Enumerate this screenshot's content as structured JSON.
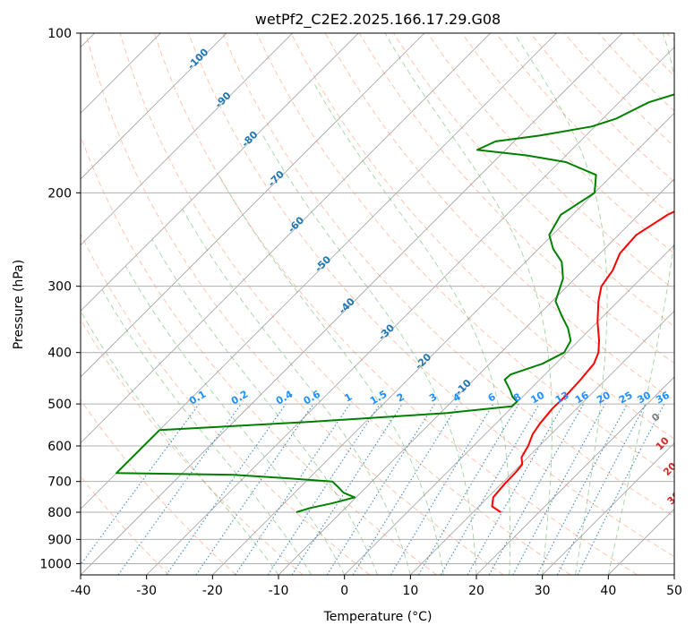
{
  "chart_data": {
    "type": "line",
    "subtype": "skew-t log-p diagram",
    "title": "wetPf2_C2E2.2025.166.17.29.G08",
    "xlabel": "Temperature (°C)",
    "ylabel": "Pressure (hPa)",
    "xlim": [
      -40,
      50
    ],
    "ylim": [
      1050,
      100
    ],
    "x_ticks": [
      -40,
      -30,
      -20,
      -10,
      0,
      10,
      20,
      30,
      40,
      50
    ],
    "y_ticks": [
      100,
      200,
      300,
      400,
      500,
      600,
      700,
      800,
      900,
      1000
    ],
    "grid": true,
    "colors": {
      "temperature": "#ff0000",
      "dewpoint": "#008000",
      "isotherm": "#808080",
      "dry_adiabat": "#ff7f50",
      "moist_adiabat": "#2ca02c",
      "mixing_ratio": "#1f77b4",
      "isotherm_label": "#1f77b4",
      "upper_dry_label": "#d62728"
    },
    "series": [
      {
        "name": "Temperature",
        "color": "#ff0000",
        "points": [
          {
            "p": 800,
            "t": 14.2
          },
          {
            "p": 780,
            "t": 12.0
          },
          {
            "p": 750,
            "t": 10.8
          },
          {
            "p": 710,
            "t": 10.5
          },
          {
            "p": 670,
            "t": 10.4
          },
          {
            "p": 650,
            "t": 10.2
          },
          {
            "p": 630,
            "t": 9.0
          },
          {
            "p": 600,
            "t": 8.3
          },
          {
            "p": 570,
            "t": 7.2
          },
          {
            "p": 545,
            "t": 6.7
          },
          {
            "p": 510,
            "t": 6.3
          },
          {
            "p": 480,
            "t": 6.4
          },
          {
            "p": 450,
            "t": 6.2
          },
          {
            "p": 420,
            "t": 5.8
          },
          {
            "p": 400,
            "t": 4.8
          },
          {
            "p": 380,
            "t": 3.1
          },
          {
            "p": 350,
            "t": 0.0
          },
          {
            "p": 320,
            "t": -3.0
          },
          {
            "p": 300,
            "t": -4.8
          },
          {
            "p": 280,
            "t": -5.5
          },
          {
            "p": 260,
            "t": -7.0
          },
          {
            "p": 240,
            "t": -7.3
          },
          {
            "p": 220,
            "t": -5.6
          },
          {
            "p": 200,
            "t": -2.0
          },
          {
            "p": 185,
            "t": 2.0
          },
          {
            "p": 170,
            "t": 6.5
          },
          {
            "p": 155,
            "t": 10.5
          },
          {
            "p": 140,
            "t": 13.5
          },
          {
            "p": 128,
            "t": 16.3
          },
          {
            "p": 118,
            "t": 18.5
          },
          {
            "p": 112,
            "t": 21.8
          },
          {
            "p": 106,
            "t": 25.0
          },
          {
            "p": 100,
            "t": 26.8
          }
        ]
      },
      {
        "name": "Dewpoint",
        "color": "#008000",
        "points": [
          {
            "p": 800,
            "t": -16.8
          },
          {
            "p": 785,
            "t": -15.3
          },
          {
            "p": 770,
            "t": -12.8
          },
          {
            "p": 750,
            "t": -10.2
          },
          {
            "p": 735,
            "t": -12.6
          },
          {
            "p": 720,
            "t": -14.0
          },
          {
            "p": 700,
            "t": -16.0
          },
          {
            "p": 690,
            "t": -23.5
          },
          {
            "p": 680,
            "t": -32.0
          },
          {
            "p": 675,
            "t": -50.0
          },
          {
            "p": 560,
            "t": -50.0
          },
          {
            "p": 540,
            "t": -28.0
          },
          {
            "p": 520,
            "t": -9.0
          },
          {
            "p": 505,
            "t": -0.2
          },
          {
            "p": 495,
            "t": -0.1
          },
          {
            "p": 485,
            "t": -1.5
          },
          {
            "p": 470,
            "t": -3.0
          },
          {
            "p": 450,
            "t": -5.3
          },
          {
            "p": 440,
            "t": -5.2
          },
          {
            "p": 420,
            "t": -2.0
          },
          {
            "p": 400,
            "t": -0.4
          },
          {
            "p": 380,
            "t": -1.2
          },
          {
            "p": 360,
            "t": -3.5
          },
          {
            "p": 340,
            "t": -6.5
          },
          {
            "p": 320,
            "t": -9.5
          },
          {
            "p": 290,
            "t": -11.8
          },
          {
            "p": 270,
            "t": -14.5
          },
          {
            "p": 255,
            "t": -17.8
          },
          {
            "p": 240,
            "t": -20.5
          },
          {
            "p": 220,
            "t": -21.8
          },
          {
            "p": 200,
            "t": -20.0
          },
          {
            "p": 185,
            "t": -22.5
          },
          {
            "p": 175,
            "t": -29.0
          },
          {
            "p": 170,
            "t": -36.0
          },
          {
            "p": 166,
            "t": -44.3
          },
          {
            "p": 160,
            "t": -42.8
          },
          {
            "p": 156,
            "t": -37.0
          },
          {
            "p": 150,
            "t": -30.5
          },
          {
            "p": 145,
            "t": -28.0
          },
          {
            "p": 135,
            "t": -25.5
          },
          {
            "p": 125,
            "t": -19.5
          },
          {
            "p": 115,
            "t": -16.0
          },
          {
            "p": 108,
            "t": -13.5
          },
          {
            "p": 100,
            "t": -10.0
          }
        ]
      }
    ],
    "mixing_ratio_lines_g_per_kg": [
      0.1,
      0.2,
      0.4,
      0.6,
      1,
      1.5,
      2,
      3,
      4,
      6,
      8,
      10,
      13,
      16,
      20,
      25,
      30,
      36
    ],
    "mixing_ratio_labels": [
      "0.1",
      "0.2",
      "0.4",
      "0.6",
      "1",
      "1.5",
      "2",
      "3",
      "4",
      "6",
      "8",
      "10",
      "13",
      "16",
      "20",
      "25",
      "30",
      "36"
    ],
    "isotherm_labels": [
      "-100",
      "-90",
      "-80",
      "-70",
      "-60",
      "-50",
      "-40",
      "-30",
      "-20",
      "-10"
    ],
    "upper_labels": [
      "0",
      "10",
      "20",
      "30",
      "40"
    ]
  }
}
